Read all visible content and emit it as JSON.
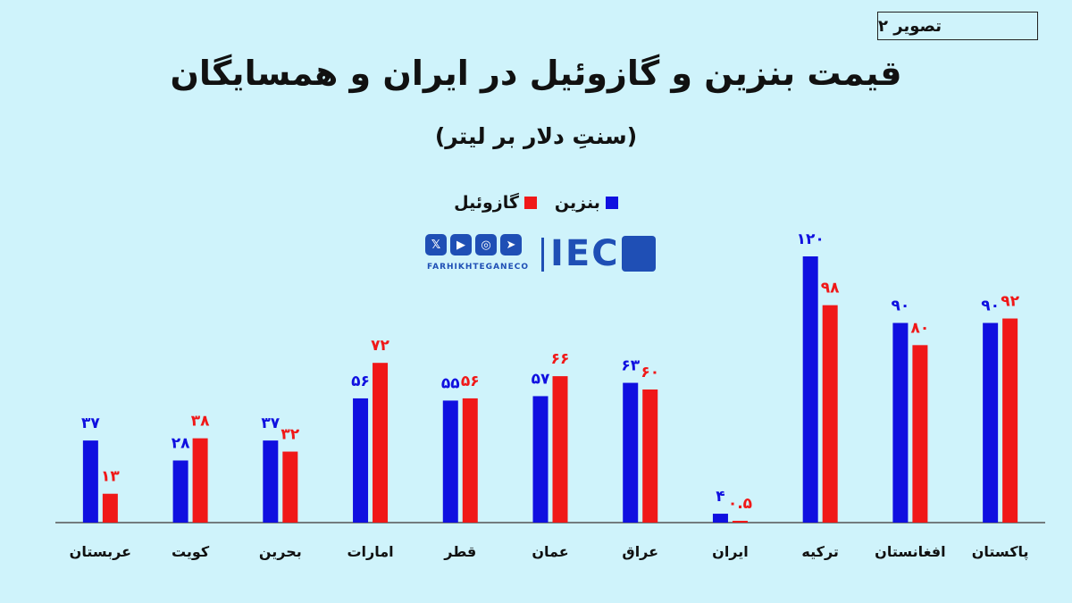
{
  "badge": "تصویر ۲",
  "chart_data": {
    "type": "bar",
    "title": "قیمت بنزین و گازوئیل در ایران و همسایگان",
    "subtitle": "(سنتِ دلار بر لیتر)",
    "categories": [
      "عربستان",
      "کویت",
      "بحرین",
      "امارات",
      "قطر",
      "عمان",
      "عراق",
      "ایران",
      "ترکیه",
      "افغانستان",
      "پاکستان"
    ],
    "series": [
      {
        "name": "بنزین",
        "color": "#1010e0",
        "values": [
          37,
          28,
          37,
          56,
          55,
          57,
          63,
          4,
          120,
          90,
          90
        ],
        "labels": [
          "۳۷",
          "۲۸",
          "۳۷",
          "۵۶",
          "۵۵",
          "۵۷",
          "۶۳",
          "۴",
          "۱۲۰",
          "۹۰",
          "۹۰"
        ]
      },
      {
        "name": "گازوئیل",
        "color": "#f01818",
        "values": [
          13,
          38,
          32,
          72,
          56,
          66,
          60,
          0.5,
          98,
          80,
          92
        ],
        "labels": [
          "۱۳",
          "۳۸",
          "۳۲",
          "۷۲",
          "۵۶",
          "۶۶",
          "۶۰",
          "۰.۵",
          "۹۸",
          "۸۰",
          "۹۲"
        ]
      }
    ],
    "ylim": [
      0,
      130
    ],
    "grid": false,
    "legend_position": "top-center"
  },
  "brand": {
    "name": "IEC",
    "handle": "FARHIKHTEGANECO",
    "social_icons": [
      "x-icon",
      "youtube-icon",
      "instagram-icon",
      "telegram-icon"
    ],
    "color": "#1f4fb5"
  }
}
